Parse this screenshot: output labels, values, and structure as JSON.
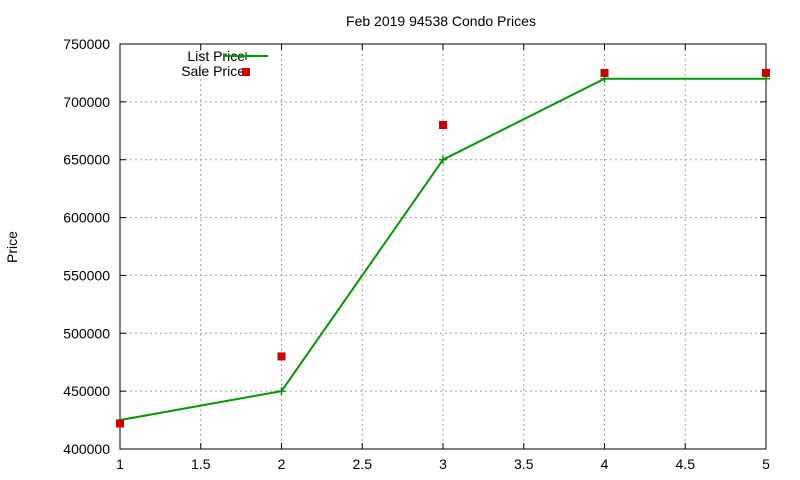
{
  "chart_data": {
    "type": "line",
    "title": "Feb 2019 94538 Condo Prices",
    "xlabel": "",
    "ylabel": "Price",
    "xlim": [
      1,
      5
    ],
    "ylim": [
      400000,
      750000
    ],
    "x_ticks": [
      "1",
      "1.5",
      "2",
      "2.5",
      "3",
      "3.5",
      "4",
      "4.5",
      "5"
    ],
    "x_tick_values": [
      1,
      1.5,
      2,
      2.5,
      3,
      3.5,
      4,
      4.5,
      5
    ],
    "y_ticks": [
      "400000",
      "450000",
      "500000",
      "550000",
      "600000",
      "650000",
      "700000",
      "750000"
    ],
    "y_tick_values": [
      400000,
      450000,
      500000,
      550000,
      600000,
      650000,
      700000,
      750000
    ],
    "grid": true,
    "legend_position": "top-left",
    "series": [
      {
        "name": "List Price",
        "style": "linespoints",
        "marker": "plus",
        "color": "#009900",
        "x": [
          1,
          2,
          3,
          4,
          5
        ],
        "values": [
          425000,
          450000,
          650000,
          720000,
          720000
        ]
      },
      {
        "name": "Sale Price",
        "style": "points",
        "marker": "square",
        "color": "#cc0000",
        "x": [
          1,
          2,
          3,
          4,
          5
        ],
        "values": [
          422000,
          480000,
          680000,
          725000,
          725000
        ]
      }
    ]
  }
}
